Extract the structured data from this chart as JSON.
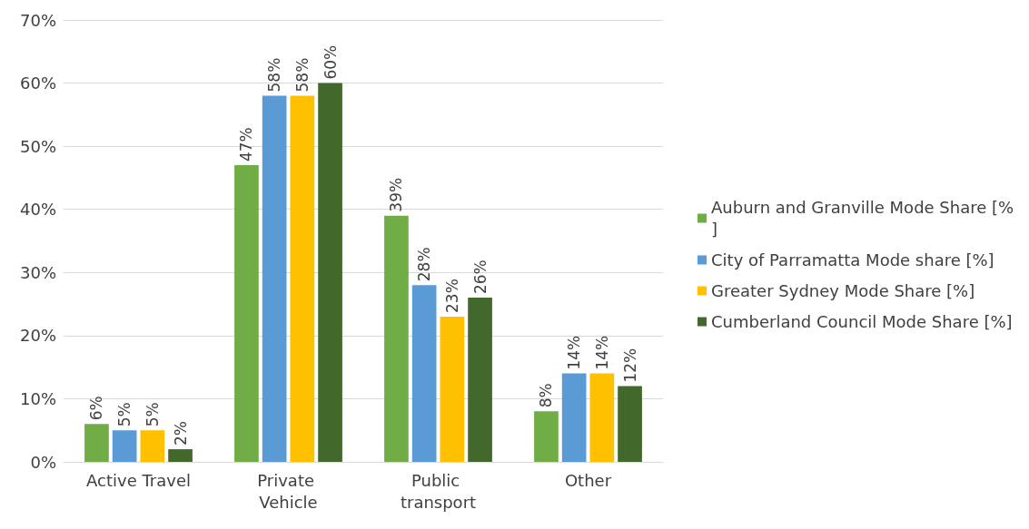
{
  "chart_data": {
    "type": "bar",
    "categories": [
      "Active Travel",
      "Private Vehicle",
      "Public transport",
      "Other"
    ],
    "series": [
      {
        "name": "Auburn and Granville Mode Share [%]",
        "color": "#70ad47",
        "values": [
          6,
          47,
          39,
          8
        ],
        "value_labels": [
          "6%",
          "47%",
          "39%",
          "8%"
        ]
      },
      {
        "name": "City of Parramatta Mode share [%]",
        "color": "#5b9bd5",
        "values": [
          5,
          58,
          28,
          14
        ],
        "value_labels": [
          "5%",
          "58%",
          "28%",
          "14%"
        ]
      },
      {
        "name": "Greater Sydney Mode Share [%]",
        "color": "#ffc000",
        "values": [
          5,
          58,
          23,
          14
        ],
        "value_labels": [
          "5%",
          "58%",
          "23%",
          "14%"
        ]
      },
      {
        "name": "Cumberland Council Mode Share [%]",
        "color": "#43682b",
        "values": [
          2,
          60,
          26,
          12
        ],
        "value_labels": [
          "2%",
          "60%",
          "26%",
          "12%"
        ]
      }
    ],
    "ylim": [
      0,
      70
    ],
    "yticks": [
      {
        "value": 0,
        "label": "0%"
      },
      {
        "value": 10,
        "label": "10%"
      },
      {
        "value": 20,
        "label": "20%"
      },
      {
        "value": 30,
        "label": "30%"
      },
      {
        "value": 40,
        "label": "40%"
      },
      {
        "value": 50,
        "label": "50%"
      },
      {
        "value": 60,
        "label": "60%"
      },
      {
        "value": 70,
        "label": "70%"
      }
    ],
    "grid": "y",
    "legend": "right"
  }
}
